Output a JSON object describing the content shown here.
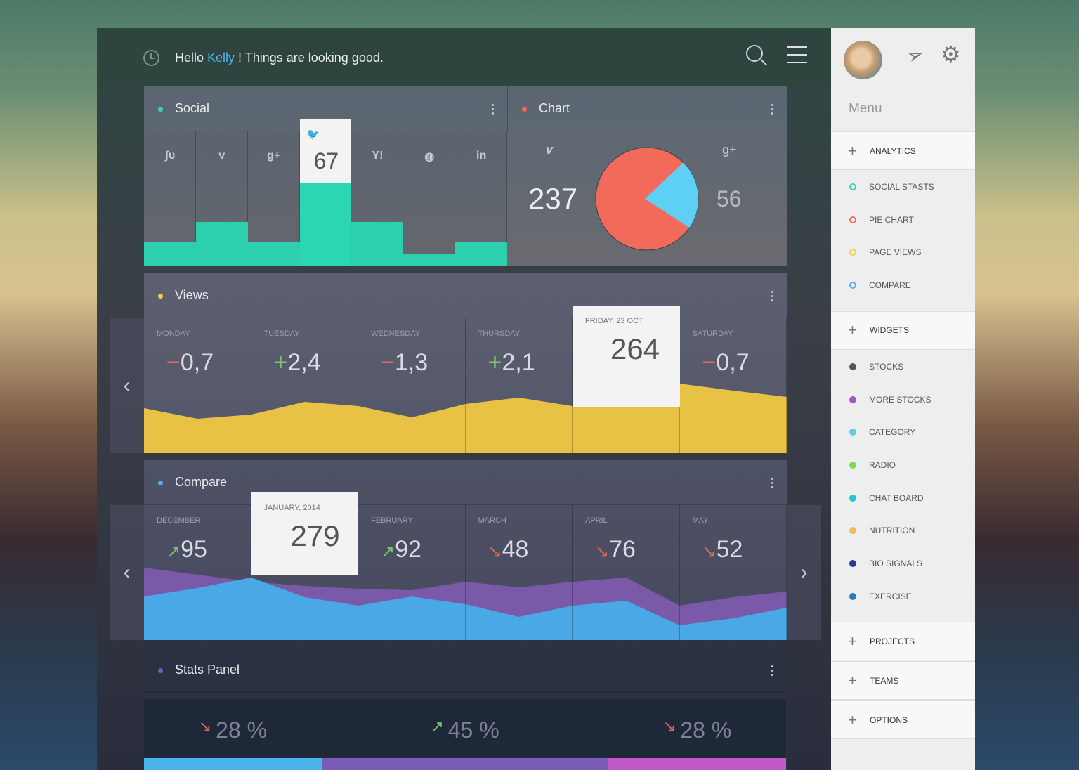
{
  "header": {
    "greeting_pre": "Hello ",
    "user": "Kelly",
    "greeting_post": " ! Things are looking good.",
    "icons": [
      "clock-icon",
      "search-icon",
      "hamburger-menu-icon"
    ]
  },
  "social": {
    "title": "Social",
    "networks": [
      {
        "icon": "stumbleupon",
        "glyph": "ʃυ"
      },
      {
        "icon": "vimeo",
        "glyph": "v"
      },
      {
        "icon": "google-plus",
        "glyph": "g+"
      },
      {
        "icon": "twitter",
        "glyph": "🐦"
      },
      {
        "icon": "yahoo",
        "glyph": "Y!"
      },
      {
        "icon": "dribbble",
        "glyph": "◍"
      },
      {
        "icon": "linkedin",
        "glyph": "in"
      }
    ],
    "highlight_value": "67"
  },
  "chart": {
    "title": "Chart",
    "left_value": "237",
    "right_value": "56",
    "left_icon": "v",
    "right_icon": "g+"
  },
  "views": {
    "title": "Views",
    "days": [
      {
        "label": "MONDAY",
        "sign": "−",
        "value": "0,7",
        "neg": true
      },
      {
        "label": "TUESDAY",
        "sign": "+",
        "value": "2,4",
        "neg": false
      },
      {
        "label": "WEDNESDAY",
        "sign": "−",
        "value": "1,3",
        "neg": true
      },
      {
        "label": "THURSDAY",
        "sign": "+",
        "value": "2,1",
        "neg": false
      },
      {
        "label": "FRIDAY, 23 OCT",
        "sign": "",
        "value": "264",
        "neg": false
      },
      {
        "label": "SATURDAY",
        "sign": "−",
        "value": "0,7",
        "neg": true
      }
    ]
  },
  "compare": {
    "title": "Compare",
    "months": [
      {
        "label": "DECEMBER",
        "arrow": "↗",
        "value": "95",
        "up": true
      },
      {
        "label": "JANUARY, 2014",
        "arrow": "",
        "value": "279",
        "up": true
      },
      {
        "label": "FEBRUARY",
        "arrow": "↗",
        "value": "92",
        "up": true
      },
      {
        "label": "MARCH",
        "arrow": "↘",
        "value": "48",
        "up": false
      },
      {
        "label": "APRIL",
        "arrow": "↘",
        "value": "76",
        "up": false
      },
      {
        "label": "MAY",
        "arrow": "↘",
        "value": "52",
        "up": false
      }
    ]
  },
  "stats": {
    "title": "Stats Panel",
    "items": [
      {
        "arrow": "↘",
        "value": "28 %",
        "pct": 28,
        "color": "#4ab3ec"
      },
      {
        "arrow": "↗",
        "value": "45 %",
        "pct": 45,
        "color": "#7a5bb8"
      },
      {
        "arrow": "↘",
        "value": "28 %",
        "pct": 28,
        "color": "#c05ac8"
      }
    ]
  },
  "sidebar": {
    "menu_label": "Menu",
    "sections": [
      {
        "label": "ANALYTICS",
        "items": [
          {
            "label": "SOCIAL STASTS",
            "color": "#2ed8b6",
            "ring": true
          },
          {
            "label": "PIE CHART",
            "color": "#f06a5a",
            "ring": true
          },
          {
            "label": "PAGE VIEWS",
            "color": "#f5d040",
            "ring": true
          },
          {
            "label": "COMPARE",
            "color": "#4ab3ec",
            "ring": true
          }
        ]
      },
      {
        "label": "WIDGETS",
        "items": [
          {
            "label": "STOCKS",
            "color": "#555555"
          },
          {
            "label": "MORE STOCKS",
            "color": "#9b59c6"
          },
          {
            "label": "CATEGORY",
            "color": "#5bcfd8"
          },
          {
            "label": "RADIO",
            "color": "#7ed957"
          },
          {
            "label": "CHAT BOARD",
            "color": "#1fc8d0"
          },
          {
            "label": "NUTRITION",
            "color": "#f5b85a"
          },
          {
            "label": "BIO SIGNALS",
            "color": "#2f3a8a"
          },
          {
            "label": "EXERCISE",
            "color": "#2a7ab8"
          }
        ]
      },
      {
        "label": "PROJECTS",
        "items": []
      },
      {
        "label": "TEAMS",
        "items": []
      },
      {
        "label": "OPTIONS",
        "items": []
      }
    ]
  },
  "chart_data": [
    {
      "type": "bar",
      "title": "Social",
      "categories": [
        "stumbleupon",
        "vimeo",
        "google-plus",
        "twitter",
        "yahoo",
        "dribbble",
        "linkedin"
      ],
      "values": [
        20,
        36,
        20,
        67,
        36,
        10,
        20
      ],
      "color": "#2ccfae"
    },
    {
      "type": "pie",
      "title": "Chart",
      "values": [
        237,
        56
      ],
      "colors": [
        "#f26a5a",
        "#5fd0f5"
      ]
    },
    {
      "type": "area",
      "title": "Views",
      "values": [
        64,
        49,
        55,
        73,
        67,
        51,
        70,
        79,
        67,
        85,
        99,
        89,
        80
      ],
      "ylim": [
        0,
        192
      ],
      "color": "#e8c244"
    },
    {
      "type": "area",
      "title": "Compare",
      "series": [
        {
          "name": "purple",
          "values": [
            103,
            93,
            83,
            77,
            73,
            71,
            83,
            75,
            83,
            89,
            49,
            61,
            69
          ],
          "color": "#7a5aa8"
        },
        {
          "name": "blue",
          "values": [
            62,
            74,
            89,
            61,
            49,
            62,
            51,
            33,
            49,
            56,
            21,
            31,
            46
          ],
          "color": "#4aa8e6"
        }
      ],
      "ylim": [
        0,
        192
      ]
    }
  ]
}
